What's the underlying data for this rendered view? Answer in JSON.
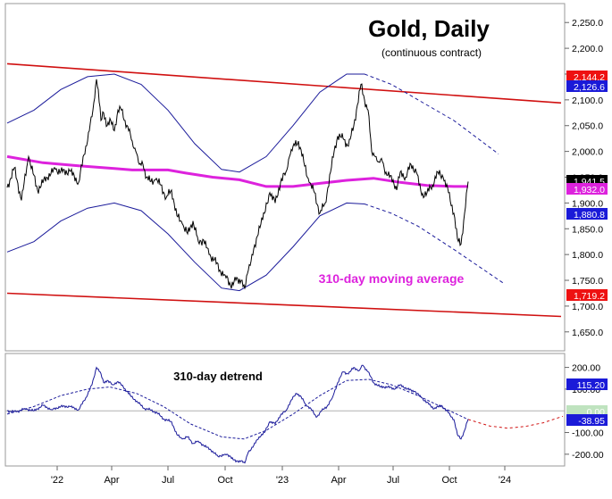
{
  "chart_data": [
    {
      "type": "line",
      "title": "Gold, Daily",
      "subtitle": "(continuous contract)",
      "y_scale": "linear",
      "ylim": [
        1615,
        2285
      ],
      "y_ticks": [
        {
          "value": 2250,
          "label": "2,250.0"
        },
        {
          "value": 2200,
          "label": "2,200.0"
        },
        {
          "value": 2150,
          "label": "2,150.0"
        },
        {
          "value": 2100,
          "label": "2,100.0"
        },
        {
          "value": 2050,
          "label": "2,050.0"
        },
        {
          "value": 2000,
          "label": "2,000.0"
        },
        {
          "value": 1950,
          "label": "1,950.0"
        },
        {
          "value": 1900,
          "label": "1,900.0"
        },
        {
          "value": 1850,
          "label": "1,850.0"
        },
        {
          "value": 1800,
          "label": "1,800.0"
        },
        {
          "value": 1750,
          "label": "1,750.0"
        },
        {
          "value": 1700,
          "label": "1,700.0"
        },
        {
          "value": 1650,
          "label": "1,650.0"
        }
      ],
      "x_ticks": [
        "'22",
        "Apr",
        "Jul",
        "Oct",
        "'23",
        "Apr",
        "Jul",
        "Oct",
        "'24"
      ],
      "price_labels": [
        {
          "value": 2144.2,
          "label": "2,144.2",
          "color": "#ee1111"
        },
        {
          "value": 2126.6,
          "label": "2,126.6",
          "color": "#1a1ad8"
        },
        {
          "value": 1941.5,
          "label": "1,941.5",
          "color": "#000000"
        },
        {
          "value": 1932.0,
          "label": "1,932.0",
          "color": "#dd22dd"
        },
        {
          "value": 1880.8,
          "label": "1,880.8",
          "color": "#1a1ad8"
        },
        {
          "value": 1719.2,
          "label": "1,719.2",
          "color": "#ee1111"
        }
      ],
      "annotations": [
        "310-day moving average"
      ],
      "price_series": [
        [
          0,
          1930
        ],
        [
          8,
          1968
        ],
        [
          16,
          1905
        ],
        [
          24,
          1990
        ],
        [
          34,
          1925
        ],
        [
          44,
          1950
        ],
        [
          54,
          1965
        ],
        [
          62,
          1960
        ],
        [
          70,
          1962
        ],
        [
          80,
          1940
        ],
        [
          88,
          2010
        ],
        [
          92,
          2040
        ],
        [
          96,
          2080
        ],
        [
          100,
          2140
        ],
        [
          102,
          2120
        ],
        [
          105,
          2060
        ],
        [
          108,
          2075
        ],
        [
          112,
          2050
        ],
        [
          116,
          2060
        ],
        [
          120,
          2040
        ],
        [
          124,
          2080
        ],
        [
          128,
          2080
        ],
        [
          132,
          2060
        ],
        [
          136,
          2040
        ],
        [
          140,
          2020
        ],
        [
          144,
          2000
        ],
        [
          148,
          1975
        ],
        [
          152,
          1975
        ],
        [
          156,
          1950
        ],
        [
          160,
          1942
        ],
        [
          166,
          1945
        ],
        [
          172,
          1935
        ],
        [
          178,
          1910
        ],
        [
          184,
          1925
        ],
        [
          190,
          1875
        ],
        [
          196,
          1860
        ],
        [
          202,
          1840
        ],
        [
          208,
          1865
        ],
        [
          214,
          1825
        ],
        [
          220,
          1828
        ],
        [
          226,
          1800
        ],
        [
          232,
          1790
        ],
        [
          238,
          1770
        ],
        [
          244,
          1760
        ],
        [
          250,
          1740
        ],
        [
          256,
          1750
        ],
        [
          262,
          1750
        ],
        [
          266,
          1735
        ],
        [
          270,
          1770
        ],
        [
          274,
          1800
        ],
        [
          278,
          1815
        ],
        [
          282,
          1855
        ],
        [
          288,
          1880
        ],
        [
          294,
          1920
        ],
        [
          300,
          1900
        ],
        [
          306,
          1940
        ],
        [
          312,
          1960
        ],
        [
          316,
          1990
        ],
        [
          320,
          2010
        ],
        [
          326,
          2020
        ],
        [
          332,
          1980
        ],
        [
          338,
          1940
        ],
        [
          344,
          1920
        ],
        [
          350,
          1880
        ],
        [
          356,
          1900
        ],
        [
          362,
          1960
        ],
        [
          366,
          2000
        ],
        [
          370,
          2030
        ],
        [
          376,
          2025
        ],
        [
          382,
          2010
        ],
        [
          388,
          2050
        ],
        [
          392,
          2090
        ],
        [
          396,
          2130
        ],
        [
          400,
          2100
        ],
        [
          404,
          2080
        ],
        [
          408,
          2000
        ],
        [
          412,
          1990
        ],
        [
          416,
          1980
        ],
        [
          420,
          1980
        ],
        [
          424,
          1960
        ],
        [
          428,
          1950
        ],
        [
          432,
          1945
        ],
        [
          436,
          1925
        ],
        [
          440,
          1960
        ],
        [
          446,
          1950
        ],
        [
          452,
          1975
        ],
        [
          458,
          1960
        ],
        [
          464,
          1915
        ],
        [
          470,
          1920
        ],
        [
          476,
          1935
        ],
        [
          482,
          1960
        ],
        [
          488,
          1950
        ],
        [
          494,
          1920
        ],
        [
          500,
          1880
        ],
        [
          504,
          1830
        ],
        [
          508,
          1820
        ],
        [
          512,
          1880
        ],
        [
          516,
          1941.5
        ]
      ],
      "moving_average_310": [
        [
          0,
          1990
        ],
        [
          40,
          1978
        ],
        [
          80,
          1972
        ],
        [
          120,
          1967
        ],
        [
          140,
          1964
        ],
        [
          180,
          1964
        ],
        [
          200,
          1958
        ],
        [
          230,
          1950
        ],
        [
          260,
          1945
        ],
        [
          290,
          1932
        ],
        [
          320,
          1932
        ],
        [
          350,
          1938
        ],
        [
          380,
          1944
        ],
        [
          410,
          1948
        ],
        [
          440,
          1940
        ],
        [
          470,
          1934
        ],
        [
          500,
          1932
        ],
        [
          516,
          1932
        ]
      ],
      "channel_upper": [
        [
          0,
          2170
        ],
        [
          620,
          2094
        ]
      ],
      "channel_lower": [
        [
          0,
          1725
        ],
        [
          620,
          1680
        ]
      ],
      "envelope_upper": [
        [
          0,
          2055
        ],
        [
          30,
          2080
        ],
        [
          60,
          2120
        ],
        [
          90,
          2145
        ],
        [
          120,
          2150
        ],
        [
          150,
          2130
        ],
        [
          180,
          2080
        ],
        [
          210,
          2015
        ],
        [
          240,
          1965
        ],
        [
          260,
          1960
        ],
        [
          290,
          1990
        ],
        [
          320,
          2050
        ],
        [
          350,
          2115
        ],
        [
          380,
          2150
        ],
        [
          400,
          2150
        ],
        [
          430,
          2130
        ],
        [
          460,
          2100
        ],
        [
          500,
          2060
        ],
        [
          550,
          1995
        ]
      ],
      "envelope_lower": [
        [
          0,
          1805
        ],
        [
          30,
          1825
        ],
        [
          60,
          1865
        ],
        [
          90,
          1890
        ],
        [
          120,
          1900
        ],
        [
          150,
          1885
        ],
        [
          180,
          1840
        ],
        [
          210,
          1785
        ],
        [
          240,
          1735
        ],
        [
          260,
          1730
        ],
        [
          290,
          1760
        ],
        [
          320,
          1815
        ],
        [
          350,
          1875
        ],
        [
          380,
          1900
        ],
        [
          400,
          1898
        ],
        [
          430,
          1880
        ],
        [
          460,
          1855
        ],
        [
          500,
          1810
        ],
        [
          555,
          1745
        ]
      ]
    },
    {
      "type": "line",
      "title": "310-day detrend",
      "ylim": [
        -250,
        260
      ],
      "y_ticks": [
        {
          "value": 200,
          "label": "200.00"
        },
        {
          "value": 100,
          "label": "100.00"
        },
        {
          "value": -100,
          "label": "-100.00"
        },
        {
          "value": -200,
          "label": "-200.00"
        }
      ],
      "price_labels": [
        {
          "value": 115.2,
          "label": "115.20",
          "color": "#1a1ad8"
        },
        {
          "value": 0,
          "label": "0.00",
          "color": "#bfe3bf"
        },
        {
          "value": -38.95,
          "label": "-38.95",
          "color": "#1a1ad8"
        }
      ],
      "detrend_series": [
        [
          0,
          0
        ],
        [
          10,
          -5
        ],
        [
          20,
          10
        ],
        [
          30,
          0
        ],
        [
          40,
          25
        ],
        [
          50,
          5
        ],
        [
          60,
          20
        ],
        [
          70,
          20
        ],
        [
          80,
          5
        ],
        [
          88,
          60
        ],
        [
          95,
          120
        ],
        [
          100,
          200
        ],
        [
          104,
          180
        ],
        [
          108,
          130
        ],
        [
          112,
          140
        ],
        [
          118,
          120
        ],
        [
          124,
          135
        ],
        [
          130,
          110
        ],
        [
          138,
          70
        ],
        [
          146,
          40
        ],
        [
          154,
          10
        ],
        [
          160,
          5
        ],
        [
          168,
          -10
        ],
        [
          176,
          -40
        ],
        [
          184,
          -50
        ],
        [
          190,
          -110
        ],
        [
          196,
          -130
        ],
        [
          202,
          -120
        ],
        [
          208,
          -150
        ],
        [
          214,
          -140
        ],
        [
          220,
          -160
        ],
        [
          228,
          -180
        ],
        [
          236,
          -210
        ],
        [
          244,
          -200
        ],
        [
          250,
          -210
        ],
        [
          256,
          -235
        ],
        [
          262,
          -230
        ],
        [
          266,
          -240
        ],
        [
          270,
          -190
        ],
        [
          276,
          -160
        ],
        [
          282,
          -120
        ],
        [
          288,
          -100
        ],
        [
          294,
          -50
        ],
        [
          300,
          -60
        ],
        [
          306,
          -20
        ],
        [
          312,
          0
        ],
        [
          318,
          50
        ],
        [
          324,
          80
        ],
        [
          328,
          70
        ],
        [
          334,
          30
        ],
        [
          340,
          10
        ],
        [
          346,
          -30
        ],
        [
          352,
          0
        ],
        [
          358,
          20
        ],
        [
          364,
          60
        ],
        [
          370,
          130
        ],
        [
          376,
          180
        ],
        [
          382,
          170
        ],
        [
          388,
          200
        ],
        [
          394,
          185
        ],
        [
          398,
          210
        ],
        [
          404,
          180
        ],
        [
          410,
          130
        ],
        [
          418,
          110
        ],
        [
          426,
          110
        ],
        [
          434,
          100
        ],
        [
          440,
          120
        ],
        [
          448,
          100
        ],
        [
          456,
          90
        ],
        [
          464,
          60
        ],
        [
          472,
          30
        ],
        [
          478,
          10
        ],
        [
          486,
          25
        ],
        [
          494,
          -10
        ],
        [
          500,
          -40
        ],
        [
          504,
          -110
        ],
        [
          508,
          -130
        ],
        [
          512,
          -90
        ],
        [
          516,
          -38.95
        ]
      ],
      "trend_cycle_solid": [
        [
          0,
          -15
        ],
        [
          30,
          20
        ],
        [
          60,
          70
        ],
        [
          90,
          100
        ],
        [
          115,
          110
        ],
        [
          145,
          80
        ],
        [
          175,
          20
        ],
        [
          205,
          -60
        ],
        [
          240,
          -120
        ],
        [
          265,
          -130
        ],
        [
          290,
          -90
        ],
        [
          320,
          -15
        ],
        [
          350,
          70
        ],
        [
          380,
          140
        ],
        [
          405,
          145
        ],
        [
          430,
          120
        ],
        [
          460,
          70
        ],
        [
          490,
          10
        ],
        [
          516,
          -40
        ]
      ],
      "trend_cycle_projection": [
        [
          516,
          -40
        ],
        [
          540,
          -70
        ],
        [
          560,
          -80
        ],
        [
          580,
          -72
        ],
        [
          600,
          -55
        ],
        [
          622,
          -25
        ]
      ]
    }
  ]
}
